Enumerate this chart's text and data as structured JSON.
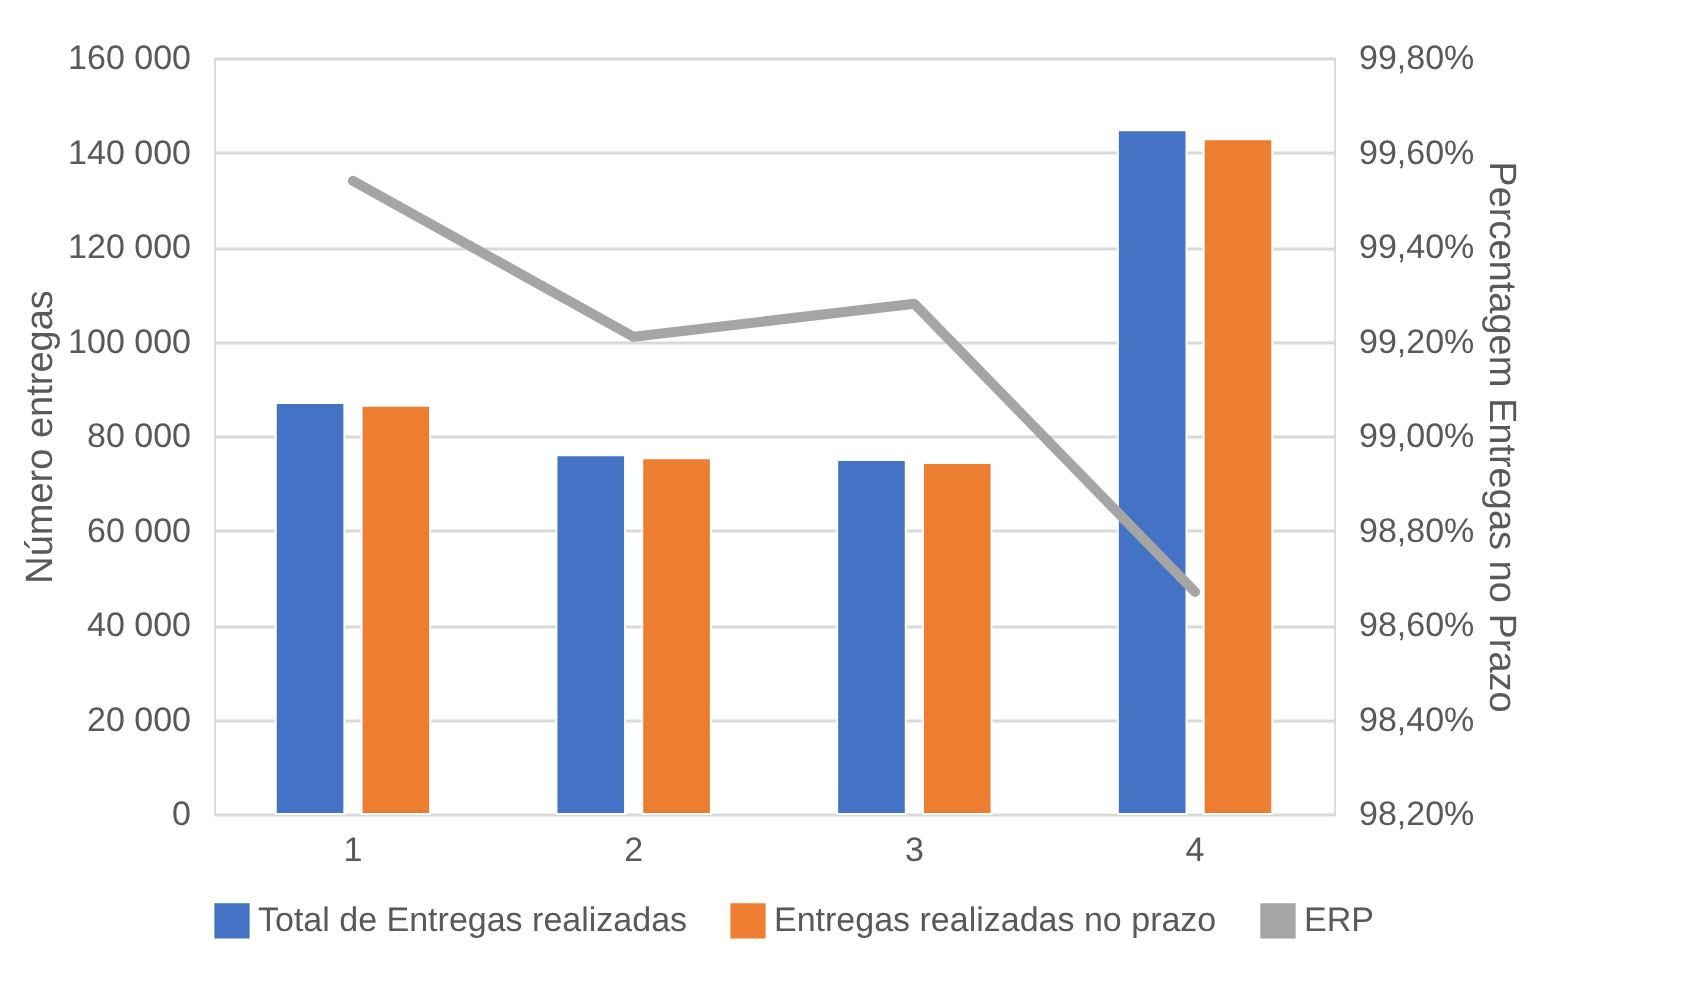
{
  "chart_data": {
    "type": "bar",
    "categories": [
      "1",
      "2",
      "3",
      "4"
    ],
    "ylabel": "Número entregas",
    "y2label": "Percentagem Entregas no Prazo",
    "series": [
      {
        "name": "Total de Entregas realizadas",
        "color": "#4472c4",
        "values": [
          87000,
          75900,
          74900,
          144700
        ]
      },
      {
        "name": "Entregas realizadas no prazo",
        "color": "#ed7d31",
        "values": [
          86400,
          75300,
          74300,
          142800
        ]
      },
      {
        "name": "ERP",
        "type": "line",
        "axis": "y2",
        "color": "#a5a5a5",
        "values": [
          99.54,
          99.21,
          99.28,
          98.67
        ]
      }
    ],
    "ylim": [
      0,
      160000
    ],
    "yticks": [
      {
        "value": 0,
        "label": "0"
      },
      {
        "value": 20000,
        "label": "20 000"
      },
      {
        "value": 40000,
        "label": "40 000"
      },
      {
        "value": 60000,
        "label": "60 000"
      },
      {
        "value": 80000,
        "label": "80 000"
      },
      {
        "value": 100000,
        "label": "100 000"
      },
      {
        "value": 120000,
        "label": "120 000"
      },
      {
        "value": 140000,
        "label": "140 000"
      },
      {
        "value": 160000,
        "label": "160 000"
      }
    ],
    "y2lim": [
      98.2,
      99.8
    ],
    "y2ticks": [
      {
        "value": 98.2,
        "label": "98,20%"
      },
      {
        "value": 98.4,
        "label": "98,40%"
      },
      {
        "value": 98.6,
        "label": "98,60%"
      },
      {
        "value": 98.8,
        "label": "98,80%"
      },
      {
        "value": 99.0,
        "label": "99,00%"
      },
      {
        "value": 99.2,
        "label": "99,20%"
      },
      {
        "value": 99.4,
        "label": "99,40%"
      },
      {
        "value": 99.6,
        "label": "99,60%"
      },
      {
        "value": 99.8,
        "label": "99,80%"
      }
    ],
    "grid": "y",
    "legend": "bottom",
    "marker": "none",
    "line_style": "solid"
  }
}
